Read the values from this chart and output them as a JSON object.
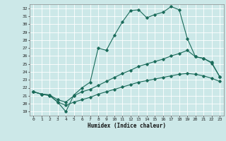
{
  "xlabel": "Humidex (Indice chaleur)",
  "bg_color": "#cce8e8",
  "grid_color": "#ffffff",
  "line_color": "#1a6b5a",
  "xlim": [
    -0.5,
    23.5
  ],
  "ylim": [
    18.5,
    32.5
  ],
  "xticks": [
    0,
    1,
    2,
    3,
    4,
    5,
    6,
    7,
    8,
    9,
    10,
    11,
    12,
    13,
    14,
    15,
    16,
    17,
    18,
    19,
    20,
    21,
    22,
    23
  ],
  "yticks": [
    19,
    20,
    21,
    22,
    23,
    24,
    25,
    26,
    27,
    28,
    29,
    30,
    31,
    32
  ],
  "series1_x": [
    0,
    1,
    2,
    3,
    4,
    5,
    6,
    7,
    8,
    9,
    10,
    11,
    12,
    13,
    14,
    15,
    16,
    17,
    18,
    19,
    20,
    21,
    22,
    23
  ],
  "series1_y": [
    21.5,
    21.2,
    21.1,
    20.2,
    19.0,
    21.1,
    22.0,
    22.7,
    27.0,
    26.7,
    28.6,
    30.3,
    31.7,
    31.8,
    30.8,
    31.2,
    31.5,
    32.2,
    31.8,
    28.2,
    25.9,
    25.7,
    25.1,
    23.4
  ],
  "series2_x": [
    0,
    1,
    2,
    3,
    4,
    5,
    6,
    7,
    8,
    9,
    10,
    11,
    12,
    13,
    14,
    15,
    16,
    17,
    18,
    19,
    20,
    21,
    22,
    23
  ],
  "series2_y": [
    21.5,
    21.2,
    21.1,
    20.5,
    20.2,
    21.0,
    21.5,
    21.8,
    22.3,
    22.8,
    23.3,
    23.8,
    24.2,
    24.7,
    25.0,
    25.3,
    25.6,
    26.0,
    26.3,
    26.7,
    25.9,
    25.7,
    25.2,
    23.4
  ],
  "series3_x": [
    0,
    1,
    2,
    3,
    4,
    5,
    6,
    7,
    8,
    9,
    10,
    11,
    12,
    13,
    14,
    15,
    16,
    17,
    18,
    19,
    20,
    21,
    22,
    23
  ],
  "series3_y": [
    21.5,
    21.2,
    21.0,
    20.2,
    19.8,
    20.2,
    20.5,
    20.8,
    21.2,
    21.5,
    21.8,
    22.1,
    22.4,
    22.7,
    22.9,
    23.1,
    23.3,
    23.5,
    23.7,
    23.8,
    23.7,
    23.5,
    23.2,
    22.8
  ]
}
